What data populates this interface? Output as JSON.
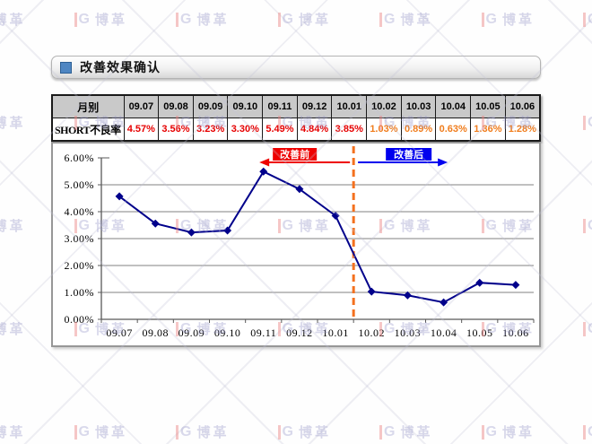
{
  "watermark": {
    "brand": "博革"
  },
  "header": {
    "title": "改善效果确认"
  },
  "table": {
    "corner_label": "月别",
    "row_label": "SHORT不良率",
    "months": [
      "09.07",
      "09.08",
      "09.09",
      "09.10",
      "09.11",
      "09.12",
      "10.01",
      "10.02",
      "10.03",
      "10.04",
      "10.05",
      "10.06"
    ],
    "values": [
      "4.57%",
      "3.56%",
      "3.23%",
      "3.30%",
      "5.49%",
      "4.84%",
      "3.85%",
      "1.03%",
      "0.89%",
      "0.63%",
      "1.36%",
      "1.28%"
    ],
    "red_color": "#e60000",
    "orange_color": "#f07d1d",
    "orange_from_index": 7
  },
  "chart_data": {
    "type": "line",
    "title": "",
    "xlabel": "",
    "ylabel": "",
    "categories": [
      "09.07",
      "09.08",
      "09.09",
      "09.10",
      "09.11",
      "09.12",
      "10.01",
      "10.02",
      "10.03",
      "10.04",
      "10.05",
      "10.06"
    ],
    "series": [
      {
        "name": "SHORT不良率",
        "color": "#00008b",
        "values": [
          4.57,
          3.56,
          3.23,
          3.3,
          5.49,
          4.84,
          3.85,
          1.03,
          0.89,
          0.63,
          1.36,
          1.28
        ]
      }
    ],
    "ylim": [
      0,
      6
    ],
    "ytick_labels": [
      "0.00%",
      "1.00%",
      "2.00%",
      "3.00%",
      "4.00%",
      "5.00%",
      "6.00%"
    ],
    "grid": true,
    "legend": "none",
    "annotations": {
      "divider_after_index": 6,
      "divider_color": "#f4711f",
      "before": {
        "label": "改善前",
        "color": "#ee0000"
      },
      "after": {
        "label": "改善后",
        "color": "#0000ee"
      }
    }
  }
}
